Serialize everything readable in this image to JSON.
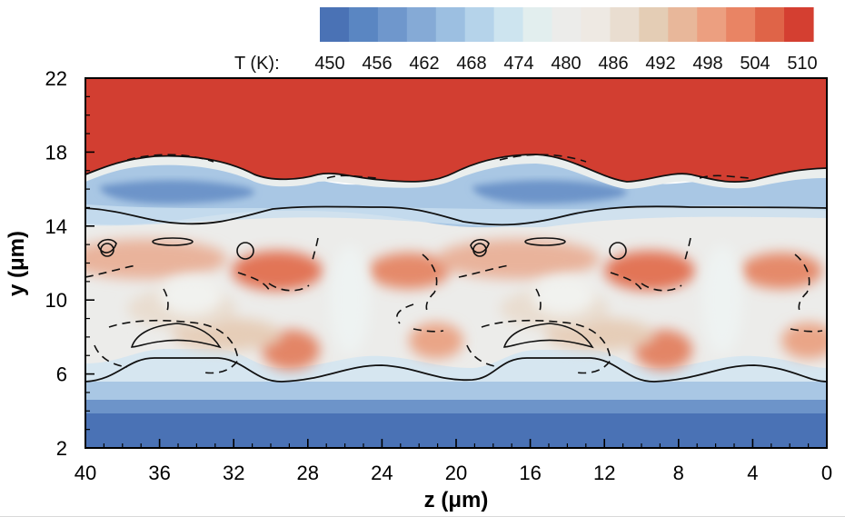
{
  "chart_data": {
    "type": "heatmap",
    "title": "",
    "xlabel": "z (μm)",
    "ylabel": "y (μm)",
    "xlim": [
      40,
      0
    ],
    "ylim": [
      2,
      22
    ],
    "x_direction": "reversed",
    "x_ticks": [
      40,
      36,
      32,
      28,
      24,
      20,
      16,
      12,
      8,
      4,
      0
    ],
    "y_ticks": [
      2,
      6,
      10,
      14,
      18,
      22
    ],
    "colorbar": {
      "label": "T (K):",
      "location": "top",
      "tick_labels": [
        450,
        456,
        462,
        468,
        474,
        480,
        486,
        492,
        498,
        504,
        510
      ],
      "range": [
        450,
        510
      ],
      "colors": [
        "#4a72b5",
        "#5a86c2",
        "#6f97cc",
        "#85aad6",
        "#9cbfe1",
        "#b5d3ea",
        "#cde4ef",
        "#e2eeee",
        "#ececea",
        "#eee9e3",
        "#e9ddd0",
        "#e4cdb5",
        "#e8b79a",
        "#ec9f80",
        "#e98464",
        "#df6448",
        "#d43f31"
      ]
    },
    "field_summary": {
      "hot_region_y_above": 17,
      "hot_region_T": 510,
      "cold_region_y_below": 5,
      "cold_region_T": 450,
      "period_z": 20
    },
    "isolines": {
      "solid": "black solid contour lines",
      "dashed": "black dashed contour lines"
    }
  }
}
